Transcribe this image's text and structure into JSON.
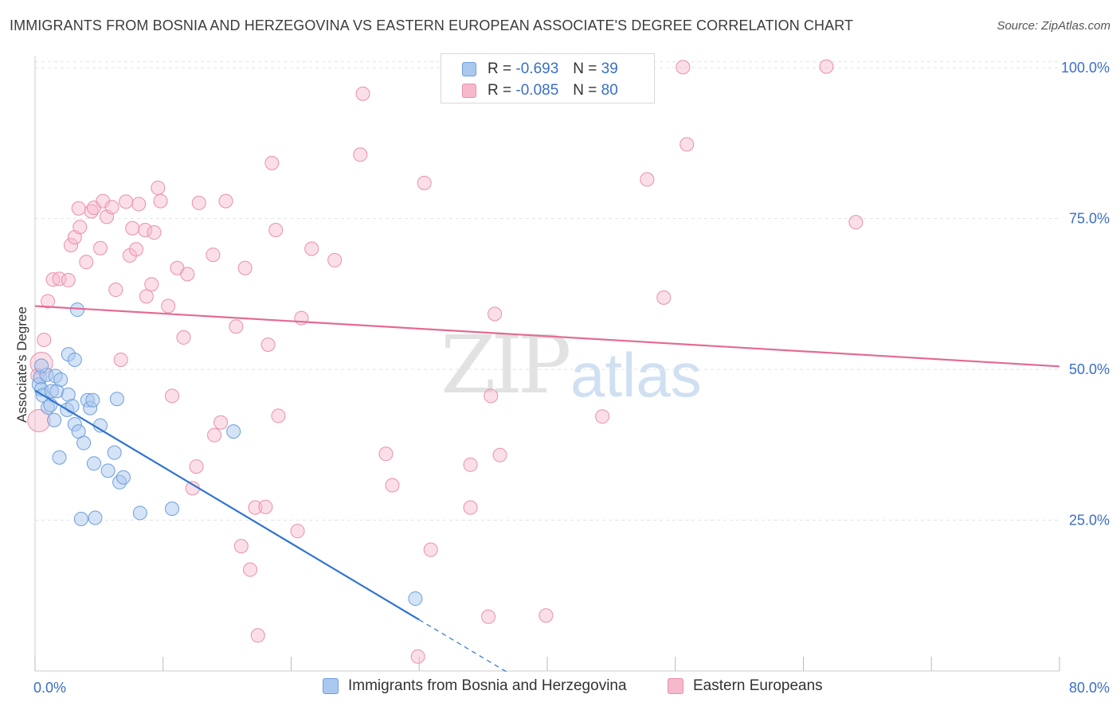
{
  "header": {
    "title": "IMMIGRANTS FROM BOSNIA AND HERZEGOVINA VS EASTERN EUROPEAN ASSOCIATE'S DEGREE CORRELATION CHART",
    "source": "Source: ZipAtlas.com"
  },
  "watermark": {
    "zip": "ZIP",
    "atlas": "atlas"
  },
  "legend": {
    "rows": [
      {
        "r_label": "R =",
        "r_value": "-0.693",
        "n_label": "N =",
        "n_value": "39",
        "color": "#aac8ee"
      },
      {
        "r_label": "R =",
        "r_value": "-0.085",
        "n_label": "N =",
        "n_value": "80",
        "color": "#f6b9cb"
      }
    ]
  },
  "bottom_legend": {
    "series1": "Immigrants from Bosnia and Herzegovina",
    "series2": "Eastern Europeans"
  },
  "chart_data": {
    "type": "scatter",
    "title": "IMMIGRANTS FROM BOSNIA AND HERZEGOVINA VS EASTERN EUROPEAN ASSOCIATE'S DEGREE CORRELATION CHART",
    "xlabel": "",
    "ylabel": "Associate's Degree",
    "xlim": [
      0,
      80
    ],
    "ylim": [
      0,
      102
    ],
    "x_tick_labels": [
      {
        "value": 0,
        "label": "0.0%"
      },
      {
        "value": 80,
        "label": "80.0%"
      }
    ],
    "y_tick_labels": [
      {
        "value": 25,
        "label": "25.0%"
      },
      {
        "value": 50,
        "label": "50.0%"
      },
      {
        "value": 75,
        "label": "75.0%"
      },
      {
        "value": 100,
        "label": "100.0%"
      }
    ],
    "colors": {
      "series1_fill": "#aac8ee",
      "series1_stroke": "#6e9fdc",
      "series1_line": "#2f74d0",
      "series2_fill": "#f6b9cb",
      "series2_stroke": "#ea8fab",
      "series2_line": "#e46a95",
      "axis_text": "#3a6fc4",
      "grid": "#e3e3e3"
    },
    "series": [
      {
        "name": "Immigrants from Bosnia and Herzegovina",
        "points": [
          [
            0.3,
            47.5
          ],
          [
            0.4,
            48.7
          ],
          [
            0.5,
            46.7
          ],
          [
            0.6,
            45.7
          ],
          [
            0.9,
            49.1
          ],
          [
            1.0,
            43.7
          ],
          [
            1.2,
            44.1
          ],
          [
            1.3,
            46.4
          ],
          [
            1.5,
            41.6
          ],
          [
            1.6,
            48.9
          ],
          [
            1.7,
            46.4
          ],
          [
            1.9,
            35.4
          ],
          [
            2.0,
            48.3
          ],
          [
            2.5,
            43.3
          ],
          [
            2.6,
            45.8
          ],
          [
            2.6,
            52.5
          ],
          [
            2.9,
            43.9
          ],
          [
            3.1,
            51.6
          ],
          [
            3.1,
            40.9
          ],
          [
            3.3,
            59.9
          ],
          [
            3.4,
            39.7
          ],
          [
            3.6,
            25.2
          ],
          [
            3.8,
            37.8
          ],
          [
            4.1,
            44.9
          ],
          [
            4.3,
            43.6
          ],
          [
            4.5,
            44.9
          ],
          [
            4.6,
            34.4
          ],
          [
            4.7,
            25.4
          ],
          [
            5.1,
            40.7
          ],
          [
            5.7,
            33.2
          ],
          [
            6.2,
            36.2
          ],
          [
            6.4,
            45.1
          ],
          [
            6.6,
            31.3
          ],
          [
            6.9,
            32.1
          ],
          [
            8.2,
            26.2
          ],
          [
            10.7,
            26.9
          ],
          [
            15.5,
            39.7
          ],
          [
            29.7,
            12.0
          ],
          [
            0.5,
            50.6
          ]
        ],
        "trend": {
          "x0": 0,
          "y0": 46.5,
          "x1": 30,
          "y1": 8.5,
          "dashed_to_x": 37
        }
      },
      {
        "name": "Eastern Europeans",
        "points": [
          [
            0.3,
            41.5
          ],
          [
            0.5,
            51.0
          ],
          [
            0.7,
            54.9
          ],
          [
            1.0,
            61.3
          ],
          [
            1.4,
            64.9
          ],
          [
            1.9,
            65.0
          ],
          [
            2.6,
            64.8
          ],
          [
            2.8,
            70.6
          ],
          [
            3.1,
            71.9
          ],
          [
            3.4,
            76.7
          ],
          [
            3.5,
            73.6
          ],
          [
            4.0,
            67.8
          ],
          [
            4.4,
            76.2
          ],
          [
            4.6,
            76.8
          ],
          [
            5.1,
            70.1
          ],
          [
            5.3,
            77.9
          ],
          [
            5.6,
            75.3
          ],
          [
            6.0,
            76.9
          ],
          [
            6.3,
            63.2
          ],
          [
            6.7,
            51.6
          ],
          [
            7.1,
            77.8
          ],
          [
            7.4,
            68.9
          ],
          [
            7.6,
            73.4
          ],
          [
            7.9,
            69.9
          ],
          [
            8.1,
            77.4
          ],
          [
            8.6,
            73.1
          ],
          [
            8.7,
            62.1
          ],
          [
            9.1,
            64.1
          ],
          [
            9.3,
            72.7
          ],
          [
            9.6,
            80.1
          ],
          [
            9.8,
            77.9
          ],
          [
            10.4,
            60.5
          ],
          [
            10.7,
            45.6
          ],
          [
            11.1,
            66.8
          ],
          [
            11.6,
            55.3
          ],
          [
            11.9,
            65.8
          ],
          [
            12.3,
            30.3
          ],
          [
            12.6,
            33.9
          ],
          [
            12.8,
            77.6
          ],
          [
            13.9,
            69.0
          ],
          [
            14.0,
            39.1
          ],
          [
            14.5,
            41.2
          ],
          [
            14.9,
            77.9
          ],
          [
            15.7,
            57.1
          ],
          [
            16.1,
            20.7
          ],
          [
            16.4,
            66.8
          ],
          [
            16.8,
            16.8
          ],
          [
            17.2,
            27.1
          ],
          [
            17.4,
            5.9
          ],
          [
            18.0,
            27.2
          ],
          [
            18.2,
            54.1
          ],
          [
            18.5,
            84.2
          ],
          [
            18.8,
            73.1
          ],
          [
            19.0,
            42.3
          ],
          [
            20.5,
            23.2
          ],
          [
            20.8,
            58.5
          ],
          [
            21.6,
            70.0
          ],
          [
            23.4,
            68.1
          ],
          [
            25.4,
            85.6
          ],
          [
            25.6,
            95.7
          ],
          [
            27.4,
            36.0
          ],
          [
            27.9,
            30.8
          ],
          [
            29.9,
            2.4
          ],
          [
            30.4,
            80.9
          ],
          [
            30.9,
            20.1
          ],
          [
            34.0,
            34.2
          ],
          [
            34.0,
            27.1
          ],
          [
            35.4,
            9.0
          ],
          [
            35.6,
            45.6
          ],
          [
            35.9,
            59.2
          ],
          [
            36.3,
            35.8
          ],
          [
            39.9,
            9.2
          ],
          [
            44.3,
            42.2
          ],
          [
            47.8,
            81.5
          ],
          [
            49.1,
            61.9
          ],
          [
            50.6,
            100.1
          ],
          [
            50.9,
            87.3
          ],
          [
            61.8,
            100.2
          ],
          [
            64.1,
            74.4
          ],
          [
            0.2,
            49.0
          ]
        ],
        "trend": {
          "x0": 0,
          "y0": 60.5,
          "x1": 80,
          "y1": 50.5
        }
      }
    ]
  }
}
